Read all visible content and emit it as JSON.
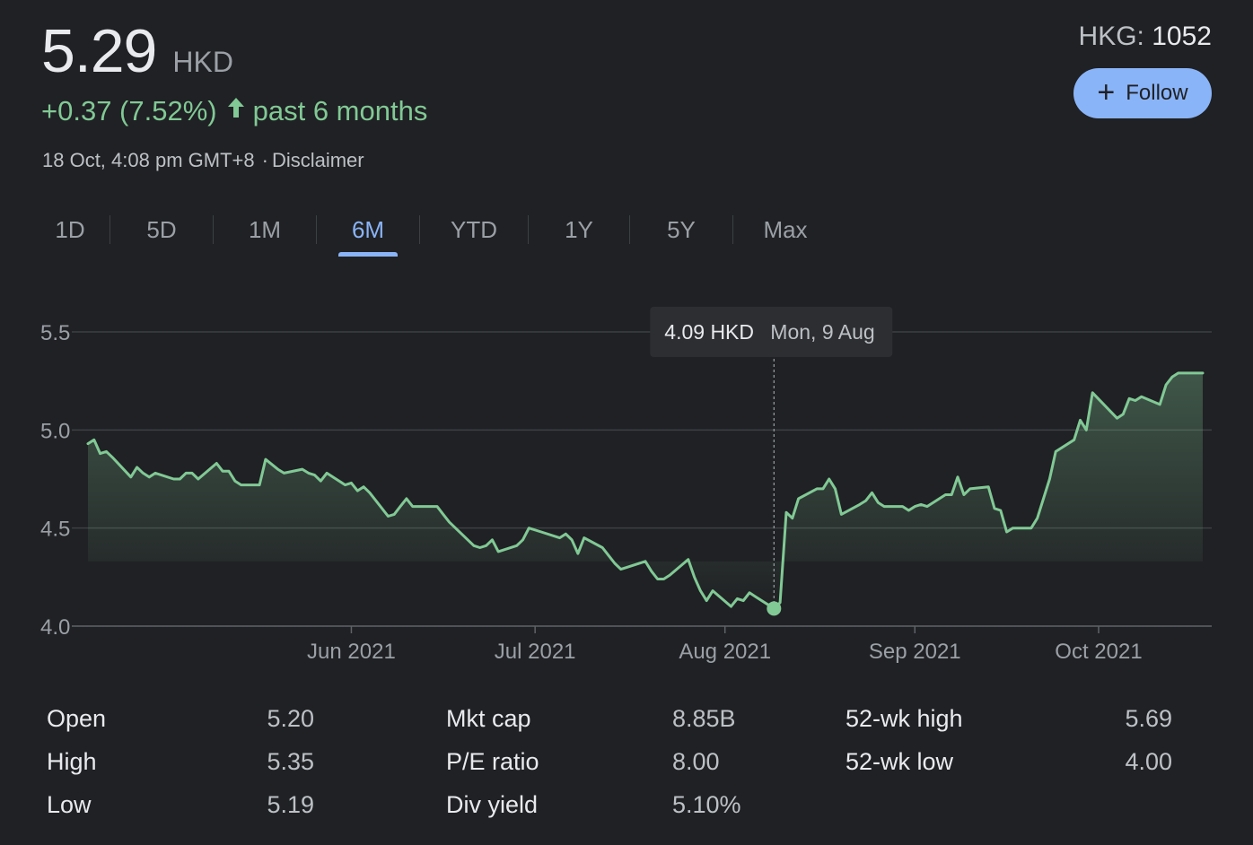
{
  "quote": {
    "price": "5.29",
    "currency": "HKD",
    "change": "+0.37 (7.52%)",
    "period": "past 6 months",
    "timestamp": "18 Oct, 4:08 pm GMT+8",
    "disclaimer": "Disclaimer",
    "exchange": "HKG:",
    "symbol": "1052",
    "up_color": "#81c995",
    "arrow_icon": "arrow-up-icon"
  },
  "follow_button": {
    "label": "Follow",
    "icon": "plus-icon",
    "color": "#8ab4f8"
  },
  "tabs": [
    {
      "label": "1D",
      "active": false
    },
    {
      "label": "5D",
      "active": false
    },
    {
      "label": "1M",
      "active": false
    },
    {
      "label": "6M",
      "active": true
    },
    {
      "label": "YTD",
      "active": false
    },
    {
      "label": "1Y",
      "active": false
    },
    {
      "label": "5Y",
      "active": false
    },
    {
      "label": "Max",
      "active": false
    }
  ],
  "chart_data": {
    "type": "area",
    "x_start": "2021-04-19",
    "x_end": "2021-10-18",
    "ylim": [
      4.0,
      5.5
    ],
    "yticks": [
      "5.5",
      "5.0",
      "4.5",
      "4.0"
    ],
    "xticks": [
      {
        "label": "Jun 2021",
        "date": "2021-06-01"
      },
      {
        "label": "Jul 2021",
        "date": "2021-07-01"
      },
      {
        "label": "Aug 2021",
        "date": "2021-08-01"
      },
      {
        "label": "Sep 2021",
        "date": "2021-09-01"
      },
      {
        "label": "Oct 2021",
        "date": "2021-10-01"
      }
    ],
    "grid": true,
    "line_color": "#81c995",
    "tooltip": {
      "value": "4.09 HKD",
      "date_label": "Mon, 9 Aug",
      "date": "2021-08-09",
      "y": 4.09
    },
    "series": [
      {
        "points": [
          [
            "2021-04-19",
            4.93
          ],
          [
            "2021-04-20",
            4.95
          ],
          [
            "2021-04-21",
            4.88
          ],
          [
            "2021-04-22",
            4.89
          ],
          [
            "2021-04-23",
            4.86
          ],
          [
            "2021-04-26",
            4.76
          ],
          [
            "2021-04-27",
            4.81
          ],
          [
            "2021-04-28",
            4.78
          ],
          [
            "2021-04-29",
            4.76
          ],
          [
            "2021-04-30",
            4.78
          ],
          [
            "2021-05-03",
            4.75
          ],
          [
            "2021-05-04",
            4.75
          ],
          [
            "2021-05-05",
            4.78
          ],
          [
            "2021-05-06",
            4.78
          ],
          [
            "2021-05-07",
            4.75
          ],
          [
            "2021-05-10",
            4.83
          ],
          [
            "2021-05-11",
            4.79
          ],
          [
            "2021-05-12",
            4.79
          ],
          [
            "2021-05-13",
            4.74
          ],
          [
            "2021-05-14",
            4.72
          ],
          [
            "2021-05-17",
            4.72
          ],
          [
            "2021-05-18",
            4.85
          ],
          [
            "2021-05-20",
            4.8
          ],
          [
            "2021-05-21",
            4.78
          ],
          [
            "2021-05-24",
            4.8
          ],
          [
            "2021-05-25",
            4.78
          ],
          [
            "2021-05-26",
            4.77
          ],
          [
            "2021-05-27",
            4.74
          ],
          [
            "2021-05-28",
            4.78
          ],
          [
            "2021-05-31",
            4.72
          ],
          [
            "2021-06-01",
            4.73
          ],
          [
            "2021-06-02",
            4.69
          ],
          [
            "2021-06-03",
            4.71
          ],
          [
            "2021-06-04",
            4.68
          ],
          [
            "2021-06-07",
            4.56
          ],
          [
            "2021-06-08",
            4.57
          ],
          [
            "2021-06-09",
            4.61
          ],
          [
            "2021-06-10",
            4.65
          ],
          [
            "2021-06-11",
            4.61
          ],
          [
            "2021-06-15",
            4.61
          ],
          [
            "2021-06-16",
            4.57
          ],
          [
            "2021-06-17",
            4.53
          ],
          [
            "2021-06-18",
            4.5
          ],
          [
            "2021-06-21",
            4.41
          ],
          [
            "2021-06-22",
            4.4
          ],
          [
            "2021-06-23",
            4.41
          ],
          [
            "2021-06-24",
            4.44
          ],
          [
            "2021-06-25",
            4.38
          ],
          [
            "2021-06-28",
            4.41
          ],
          [
            "2021-06-29",
            4.44
          ],
          [
            "2021-06-30",
            4.5
          ],
          [
            "2021-07-02",
            4.48
          ],
          [
            "2021-07-05",
            4.45
          ],
          [
            "2021-07-06",
            4.47
          ],
          [
            "2021-07-07",
            4.44
          ],
          [
            "2021-07-08",
            4.37
          ],
          [
            "2021-07-09",
            4.45
          ],
          [
            "2021-07-12",
            4.4
          ],
          [
            "2021-07-13",
            4.36
          ],
          [
            "2021-07-14",
            4.32
          ],
          [
            "2021-07-15",
            4.29
          ],
          [
            "2021-07-16",
            4.3
          ],
          [
            "2021-07-19",
            4.33
          ],
          [
            "2021-07-20",
            4.28
          ],
          [
            "2021-07-21",
            4.24
          ],
          [
            "2021-07-22",
            4.24
          ],
          [
            "2021-07-23",
            4.26
          ],
          [
            "2021-07-26",
            4.34
          ],
          [
            "2021-07-27",
            4.25
          ],
          [
            "2021-07-28",
            4.18
          ],
          [
            "2021-07-29",
            4.13
          ],
          [
            "2021-07-30",
            4.18
          ],
          [
            "2021-08-02",
            4.1
          ],
          [
            "2021-08-03",
            4.14
          ],
          [
            "2021-08-04",
            4.13
          ],
          [
            "2021-08-05",
            4.17
          ],
          [
            "2021-08-06",
            4.15
          ],
          [
            "2021-08-09",
            4.09
          ],
          [
            "2021-08-10",
            4.12
          ],
          [
            "2021-08-11",
            4.58
          ],
          [
            "2021-08-12",
            4.55
          ],
          [
            "2021-08-13",
            4.65
          ],
          [
            "2021-08-16",
            4.7
          ],
          [
            "2021-08-17",
            4.7
          ],
          [
            "2021-08-18",
            4.75
          ],
          [
            "2021-08-19",
            4.7
          ],
          [
            "2021-08-20",
            4.57
          ],
          [
            "2021-08-23",
            4.62
          ],
          [
            "2021-08-24",
            4.64
          ],
          [
            "2021-08-25",
            4.68
          ],
          [
            "2021-08-26",
            4.63
          ],
          [
            "2021-08-27",
            4.61
          ],
          [
            "2021-08-30",
            4.61
          ],
          [
            "2021-08-31",
            4.59
          ],
          [
            "2021-09-01",
            4.61
          ],
          [
            "2021-09-02",
            4.62
          ],
          [
            "2021-09-03",
            4.61
          ],
          [
            "2021-09-06",
            4.67
          ],
          [
            "2021-09-07",
            4.67
          ],
          [
            "2021-09-08",
            4.76
          ],
          [
            "2021-09-09",
            4.67
          ],
          [
            "2021-09-10",
            4.7
          ],
          [
            "2021-09-13",
            4.71
          ],
          [
            "2021-09-14",
            4.6
          ],
          [
            "2021-09-15",
            4.59
          ],
          [
            "2021-09-16",
            4.48
          ],
          [
            "2021-09-17",
            4.5
          ],
          [
            "2021-09-20",
            4.5
          ],
          [
            "2021-09-21",
            4.55
          ],
          [
            "2021-09-23",
            4.75
          ],
          [
            "2021-09-24",
            4.89
          ],
          [
            "2021-09-27",
            4.95
          ],
          [
            "2021-09-28",
            5.05
          ],
          [
            "2021-09-29",
            5.0
          ],
          [
            "2021-09-30",
            5.19
          ],
          [
            "2021-10-04",
            5.06
          ],
          [
            "2021-10-05",
            5.08
          ],
          [
            "2021-10-06",
            5.16
          ],
          [
            "2021-10-07",
            5.15
          ],
          [
            "2021-10-08",
            5.17
          ],
          [
            "2021-10-11",
            5.13
          ],
          [
            "2021-10-12",
            5.23
          ],
          [
            "2021-10-13",
            5.27
          ],
          [
            "2021-10-14",
            5.29
          ],
          [
            "2021-10-18",
            5.29
          ]
        ]
      }
    ]
  },
  "stats": [
    {
      "label": "Open",
      "value": "5.20"
    },
    {
      "label": "High",
      "value": "5.35"
    },
    {
      "label": "Low",
      "value": "5.19"
    },
    {
      "label": "Mkt cap",
      "value": "8.85B"
    },
    {
      "label": "P/E ratio",
      "value": "8.00"
    },
    {
      "label": "Div yield",
      "value": "5.10%"
    },
    {
      "label": "52-wk high",
      "value": "5.69"
    },
    {
      "label": "52-wk low",
      "value": "4.00"
    }
  ]
}
